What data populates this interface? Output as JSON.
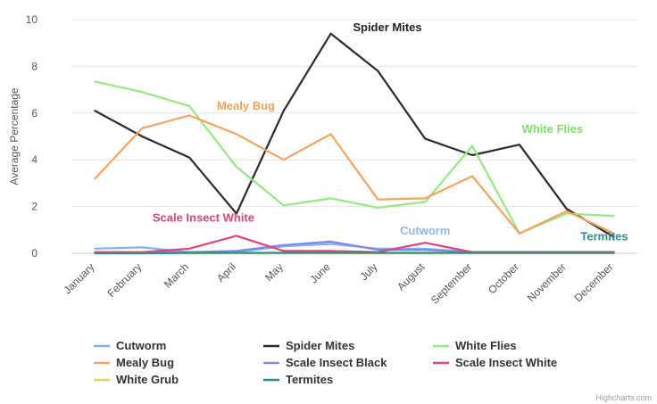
{
  "chart_data": {
    "type": "line",
    "title": "",
    "xlabel": "",
    "ylabel": "Average Percentage",
    "ylim": [
      0,
      10
    ],
    "yticks": [
      0,
      2,
      4,
      6,
      8,
      10
    ],
    "grid": true,
    "legend_position": "bottom",
    "categories": [
      "January",
      "February",
      "March",
      "April",
      "May",
      "June",
      "July",
      "August",
      "September",
      "October",
      "November",
      "December"
    ],
    "series": [
      {
        "name": "Cutworm",
        "color": "#7cb5ec",
        "values": [
          0.2,
          0.25,
          0.05,
          0.05,
          0.3,
          0.4,
          0.2,
          0.2,
          0.05,
          0.05,
          0.05,
          0.05
        ]
      },
      {
        "name": "Spider Mites",
        "color": "#2b2b2b",
        "values": [
          6.1,
          5.0,
          4.1,
          1.7,
          6.1,
          9.4,
          7.8,
          4.9,
          4.2,
          4.65,
          1.9,
          0.7
        ]
      },
      {
        "name": "White Flies",
        "color": "#90ed7d",
        "values": [
          7.35,
          6.9,
          6.3,
          3.7,
          2.05,
          2.35,
          1.95,
          2.2,
          4.6,
          0.85,
          1.7,
          1.6
        ]
      },
      {
        "name": "Mealy Bug",
        "color": "#f7a35c",
        "values": [
          3.2,
          5.35,
          5.9,
          5.1,
          4.0,
          5.1,
          2.3,
          2.35,
          3.3,
          0.85,
          1.8,
          0.85
        ]
      },
      {
        "name": "Scale Insect Black",
        "color": "#8085e9",
        "values": [
          0.05,
          0.05,
          0.05,
          0.1,
          0.35,
          0.5,
          0.15,
          0.15,
          0.05,
          0.05,
          0.05,
          0.05
        ]
      },
      {
        "name": "Scale Insect White",
        "color": "#e4407b",
        "values": [
          0.05,
          0.05,
          0.2,
          0.75,
          0.1,
          0.1,
          0.05,
          0.45,
          0.05,
          0.05,
          0.05,
          0.05
        ]
      },
      {
        "name": "White Grub",
        "color": "#e4d354",
        "values": [
          0.0,
          0.0,
          0.0,
          0.0,
          0.0,
          0.0,
          0.0,
          0.0,
          0.0,
          0.0,
          0.0,
          0.0
        ]
      },
      {
        "name": "Termites",
        "color": "#2b908f",
        "values": [
          0.0,
          0.0,
          0.02,
          0.02,
          0.02,
          0.02,
          0.02,
          0.02,
          0.02,
          0.02,
          0.02,
          0.02
        ]
      }
    ],
    "annotations": [
      {
        "text": "Spider Mites",
        "color": "#222222"
      },
      {
        "text": "Mealy Bug",
        "color": "#f0a35e"
      },
      {
        "text": "White Flies",
        "color": "#7fdc6f"
      },
      {
        "text": "Scale Insect White",
        "color": "#d9467f"
      },
      {
        "text": "Cutworm",
        "color": "#8fb4e8"
      },
      {
        "text": "Termites",
        "color": "#2b8f8f"
      }
    ],
    "credits": "Highcharts.com"
  }
}
